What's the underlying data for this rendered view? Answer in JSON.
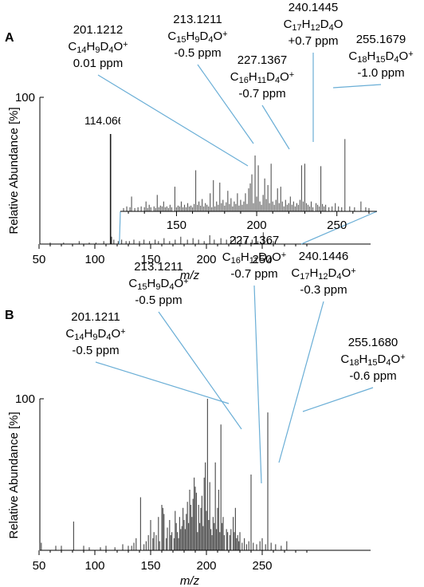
{
  "chart_data": [
    {
      "panel": "A",
      "type": "bar",
      "ylabel": "Relative Abundance [%]",
      "xlabel": "m/z",
      "xlim": [
        50,
        300
      ],
      "ylim": [
        0,
        100
      ],
      "xticks": [
        50,
        100,
        150,
        200,
        250
      ],
      "yticks": [
        100
      ],
      "main_peak": {
        "x": 114.0664,
        "y": 75,
        "label": "114.0664"
      },
      "main_spectrum": {
        "x": [
          60,
          72,
          86,
          95,
          101,
          108,
          115,
          117,
          121,
          124,
          128,
          131,
          135,
          140,
          144,
          149,
          154,
          157,
          162,
          167,
          172,
          177,
          183,
          188,
          193,
          198,
          203,
          207,
          213,
          218,
          222,
          226,
          231,
          236,
          241,
          246,
          251,
          255,
          260
        ],
        "y": [
          1,
          1,
          2,
          1,
          1,
          2,
          5,
          3,
          2,
          3,
          2,
          2,
          3,
          2,
          3,
          2,
          3,
          2,
          4,
          2,
          3,
          5,
          3,
          4,
          3,
          2,
          6,
          3,
          4,
          3,
          3,
          5,
          3,
          4,
          3,
          2,
          8,
          3,
          2
        ]
      },
      "inset": {
        "xlim": [
          115,
          275
        ],
        "ylim": [
          0,
          100
        ],
        "xticks": [
          150,
          200,
          250
        ],
        "x": [
          117,
          119,
          121,
          122,
          124,
          126,
          128,
          130,
          131,
          132,
          133,
          134,
          136,
          137,
          138,
          139,
          140,
          141,
          142,
          143,
          144,
          145,
          146,
          147,
          149,
          150,
          151,
          152,
          153,
          154,
          155,
          156,
          157,
          158,
          159,
          160,
          161,
          162,
          163,
          164,
          165,
          166,
          167,
          168,
          169,
          170,
          171,
          172,
          173,
          174,
          175,
          176,
          177,
          178,
          179,
          180,
          181,
          182,
          183,
          184,
          185,
          186,
          187,
          188,
          189,
          190,
          191,
          192,
          193,
          194,
          195,
          196,
          197,
          198,
          199,
          200,
          201,
          202,
          203,
          204,
          205,
          206,
          207,
          208,
          209,
          210,
          211,
          212,
          213,
          214,
          215,
          216,
          217,
          218,
          219,
          220,
          221,
          222,
          223,
          224,
          225,
          226,
          227,
          228,
          229,
          230,
          231,
          232,
          233,
          234,
          235,
          237,
          238,
          239,
          240,
          241,
          242,
          243,
          245,
          247,
          249,
          251,
          253,
          255,
          258,
          261,
          265,
          268,
          270
        ],
        "y": [
          4,
          6,
          5,
          18,
          4,
          5,
          6,
          5,
          12,
          4,
          8,
          5,
          6,
          4,
          20,
          5,
          7,
          6,
          12,
          5,
          6,
          4,
          8,
          5,
          30,
          5,
          7,
          6,
          12,
          5,
          8,
          5,
          10,
          6,
          7,
          5,
          9,
          50,
          8,
          12,
          7,
          15,
          6,
          10,
          8,
          6,
          22,
          5,
          38,
          6,
          12,
          8,
          35,
          10,
          14,
          7,
          11,
          25,
          9,
          16,
          6,
          12,
          9,
          22,
          7,
          14,
          8,
          12,
          22,
          9,
          28,
          34,
          45,
          10,
          68,
          18,
          56,
          12,
          8,
          20,
          40,
          15,
          32,
          10,
          58,
          12,
          8,
          14,
          28,
          10,
          30,
          12,
          6,
          14,
          8,
          10,
          18,
          8,
          12,
          6,
          10,
          8,
          14,
          56,
          12,
          58,
          10,
          8,
          6,
          12,
          5,
          10,
          8,
          6,
          55,
          9,
          6,
          8,
          5,
          6,
          10,
          6,
          5,
          88,
          6,
          5,
          12,
          5,
          4
        ]
      },
      "annotations": [
        {
          "mz": "201.1212",
          "formula": [
            [
              "C",
              ""
            ],
            [
              "14",
              "sub"
            ],
            [
              "H",
              ""
            ],
            [
              "9",
              "sub"
            ],
            [
              "D",
              ""
            ],
            [
              "4",
              "sub"
            ],
            [
              "O",
              ""
            ],
            [
              "+",
              "sup"
            ]
          ],
          "ppm": "0.01 ppm",
          "peak_x": 201.1212
        },
        {
          "mz": "213.1211",
          "formula": [
            [
              "C",
              ""
            ],
            [
              "15",
              "sub"
            ],
            [
              "H",
              ""
            ],
            [
              "9",
              "sub"
            ],
            [
              "D",
              ""
            ],
            [
              "4",
              "sub"
            ],
            [
              "O",
              ""
            ],
            [
              "+",
              "sup"
            ]
          ],
          "ppm": "-0.5 ppm",
          "peak_x": 213.1211
        },
        {
          "mz": "227.1367",
          "formula": [
            [
              "C",
              ""
            ],
            [
              "16",
              "sub"
            ],
            [
              "H",
              ""
            ],
            [
              "11",
              "sub"
            ],
            [
              "D",
              ""
            ],
            [
              "4",
              "sub"
            ],
            [
              "O",
              ""
            ],
            [
              "+",
              "sup"
            ]
          ],
          "ppm": "-0.7 ppm",
          "peak_x": 227.1367
        },
        {
          "mz": "240.1445",
          "formula": [
            [
              "C",
              ""
            ],
            [
              "17",
              "sub"
            ],
            [
              "H",
              ""
            ],
            [
              "12",
              "sub"
            ],
            [
              "D",
              ""
            ],
            [
              "4",
              "sub"
            ],
            [
              "O",
              ""
            ]
          ],
          "ppm": "+0.7 ppm",
          "peak_x": 240.1445
        },
        {
          "mz": "255.1679",
          "formula": [
            [
              "C",
              ""
            ],
            [
              "18",
              "sub"
            ],
            [
              "H",
              ""
            ],
            [
              "15",
              "sub"
            ],
            [
              "D",
              ""
            ],
            [
              "4",
              "sub"
            ],
            [
              "O",
              ""
            ],
            [
              "+",
              "sup"
            ]
          ],
          "ppm": "-1.0 ppm",
          "peak_x": 255.1679
        }
      ]
    },
    {
      "panel": "B",
      "type": "bar",
      "ylabel": "Relative Abundance [%]",
      "xlabel": "m/z",
      "xlim": [
        50,
        300
      ],
      "ylim": [
        0,
        100
      ],
      "xticks": [
        50,
        100,
        150,
        200,
        250
      ],
      "yticks": [
        100
      ],
      "x": [
        52,
        65,
        70,
        81,
        90,
        95,
        105,
        110,
        118,
        125,
        130,
        133,
        135,
        137,
        141,
        144,
        146,
        148,
        150,
        152,
        153,
        155,
        157,
        158,
        160,
        161,
        162,
        164,
        165,
        167,
        168,
        169,
        171,
        172,
        173,
        174,
        175,
        176,
        177,
        178,
        179,
        180,
        181,
        182,
        183,
        184,
        185,
        186,
        187,
        188,
        189,
        190,
        191,
        192,
        193,
        194,
        195,
        196,
        197,
        198,
        199,
        200,
        201,
        202,
        203,
        204,
        205,
        206,
        207,
        208,
        209,
        210,
        211,
        212,
        213,
        214,
        215,
        216,
        218,
        219,
        221,
        222,
        224,
        225,
        226,
        227,
        228,
        229,
        230,
        232,
        234,
        236,
        238,
        240,
        242,
        245,
        248,
        250,
        253,
        255,
        258,
        262,
        267,
        272
      ],
      "y": [
        5,
        3,
        3,
        19,
        3,
        2,
        2,
        3,
        2,
        4,
        3,
        3,
        5,
        8,
        35,
        4,
        6,
        10,
        20,
        8,
        12,
        10,
        22,
        6,
        30,
        28,
        24,
        8,
        15,
        20,
        10,
        12,
        8,
        26,
        18,
        12,
        8,
        22,
        14,
        16,
        28,
        20,
        14,
        24,
        32,
        18,
        40,
        30,
        22,
        34,
        48,
        42,
        38,
        12,
        30,
        18,
        28,
        36,
        16,
        48,
        58,
        26,
        100,
        20,
        45,
        14,
        10,
        22,
        18,
        58,
        14,
        28,
        40,
        12,
        83,
        18,
        22,
        10,
        14,
        12,
        10,
        14,
        22,
        12,
        28,
        8,
        10,
        6,
        12,
        5,
        8,
        4,
        6,
        50,
        5,
        4,
        6,
        8,
        4,
        91,
        5,
        4,
        3,
        6
      ],
      "annotations": [
        {
          "mz": "201.1211",
          "formula": [
            [
              "C",
              ""
            ],
            [
              "14",
              "sub"
            ],
            [
              "H",
              ""
            ],
            [
              "9",
              "sub"
            ],
            [
              "D",
              ""
            ],
            [
              "4",
              "sub"
            ],
            [
              "O",
              ""
            ],
            [
              "+",
              "sup"
            ]
          ],
          "ppm": "-0.5 ppm",
          "peak_x": 201.1211
        },
        {
          "mz": "213.1211",
          "formula": [
            [
              "C",
              ""
            ],
            [
              "15",
              "sub"
            ],
            [
              "H",
              ""
            ],
            [
              "9",
              "sub"
            ],
            [
              "D",
              ""
            ],
            [
              "4",
              "sub"
            ],
            [
              "O",
              ""
            ],
            [
              "+",
              "sup"
            ]
          ],
          "ppm": "-0.5 ppm",
          "peak_x": 213.1211
        },
        {
          "mz": "227.1367",
          "formula": [
            [
              "C",
              ""
            ],
            [
              "16",
              "sub"
            ],
            [
              "H",
              ""
            ],
            [
              "11",
              "sub"
            ],
            [
              "D",
              ""
            ],
            [
              "4",
              "sub"
            ],
            [
              "O",
              ""
            ],
            [
              "+",
              "sup"
            ]
          ],
          "ppm": "-0.7 ppm",
          "peak_x": 227.1367
        },
        {
          "mz": "240.1446",
          "formula": [
            [
              "C",
              ""
            ],
            [
              "17",
              "sub"
            ],
            [
              "H",
              ""
            ],
            [
              "12",
              "sub"
            ],
            [
              "D",
              ""
            ],
            [
              "4",
              "sub"
            ],
            [
              "O",
              ""
            ],
            [
              "+",
              "sup"
            ]
          ],
          "ppm": "-0.3 ppm",
          "peak_x": 240.1446
        },
        {
          "mz": "255.1680",
          "formula": [
            [
              "C",
              ""
            ],
            [
              "18",
              "sub"
            ],
            [
              "H",
              ""
            ],
            [
              "15",
              "sub"
            ],
            [
              "D",
              ""
            ],
            [
              "4",
              "sub"
            ],
            [
              "O",
              ""
            ],
            [
              "+",
              "sup"
            ]
          ],
          "ppm": "-0.6 ppm",
          "peak_x": 255.168
        }
      ]
    }
  ],
  "colors": {
    "peak": "#555555",
    "main_peak": "#1a1a1a",
    "axis": "#000000",
    "leader": "#6aaed6"
  }
}
